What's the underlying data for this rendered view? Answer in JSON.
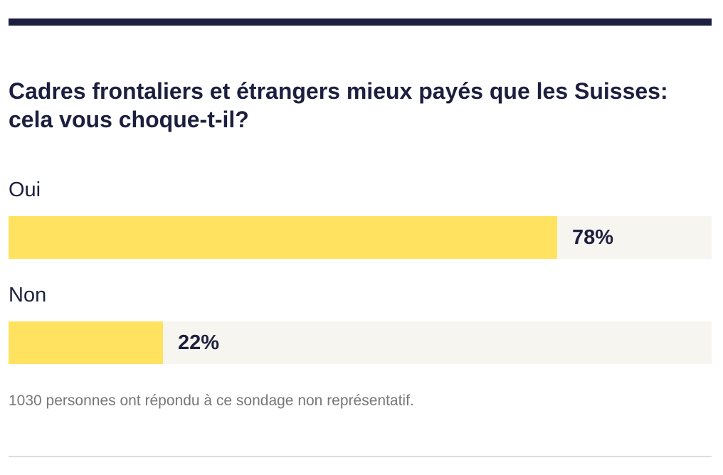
{
  "title": "Cadres frontaliers et étrangers mieux payés que les Suisses: cela vous choque-t-il?",
  "footnote": "1030 personnes ont répondu à ce sondage non représentatif.",
  "colors": {
    "accent": "#1c1f3e",
    "bar_fill": "#ffe260",
    "bar_track": "#f7f5f0",
    "footnote": "#777777"
  },
  "chart_data": {
    "type": "bar",
    "orientation": "horizontal",
    "title": "Cadres frontaliers et étrangers mieux payés que les Suisses: cela vous choque-t-il?",
    "categories": [
      "Oui",
      "Non"
    ],
    "values": [
      78,
      22
    ],
    "value_labels": [
      "78%",
      "22%"
    ],
    "unit": "%",
    "xlim": [
      0,
      100
    ],
    "grid": false,
    "legend": "none"
  }
}
